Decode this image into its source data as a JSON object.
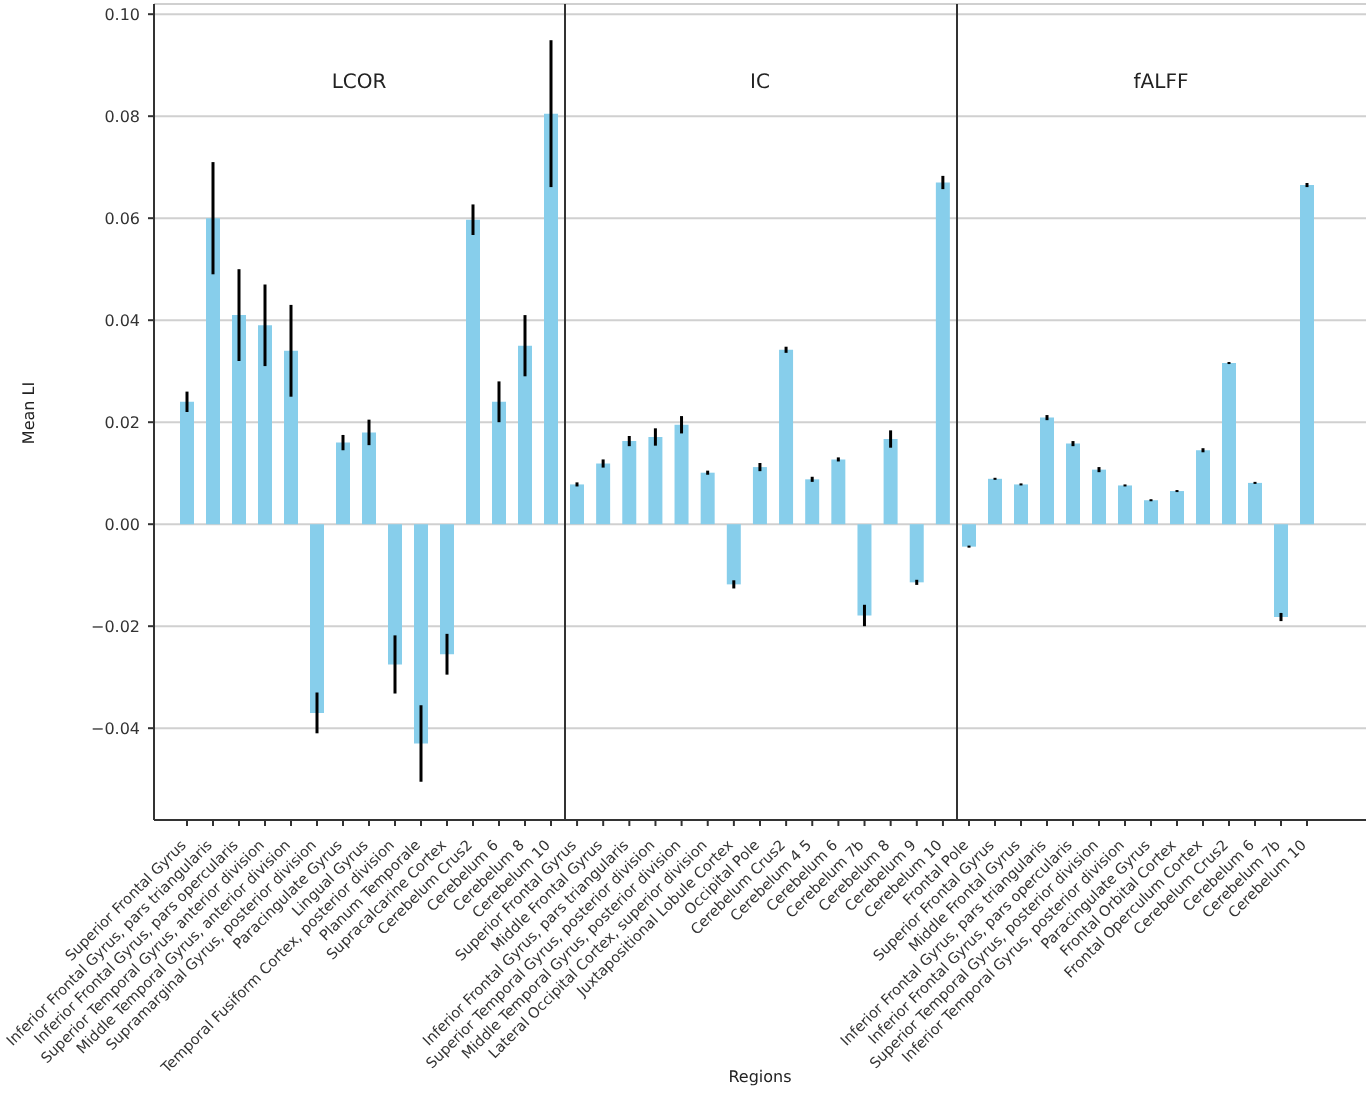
{
  "chart_data": [
    {
      "type": "bar",
      "title": "LCOR",
      "ylabel": "Mean LI",
      "color": "#87ceeb",
      "grid": "y",
      "categories": [
        "Superior Frontal Gyrus",
        "Inferior Frontal Gyrus, pars triangularis",
        "Inferior Frontal Gyrus, pars opercularis",
        "Superior Temporal Gyrus, anterior division",
        "Middle Temporal Gyrus, anterior division",
        "Supramarginal Gyrus, posterior division",
        "Paracingulate Gyrus",
        "Lingual Gyrus",
        "Temporal Fusiform Cortex, posterior division",
        "Planum Temporale",
        "Supracalcarine Cortex",
        "Cerebelum Crus2",
        "Cerebelum 6",
        "Cerebelum 8",
        "Cerebelum 10"
      ],
      "values": [
        0.024,
        0.06,
        0.041,
        0.039,
        0.034,
        -0.037,
        0.016,
        0.018,
        -0.0275,
        -0.043,
        -0.0255,
        0.0597,
        0.024,
        0.035,
        0.0805
      ],
      "errors": [
        0.002,
        0.011,
        0.009,
        0.008,
        0.009,
        0.004,
        0.0015,
        0.0025,
        0.0057,
        0.0075,
        0.004,
        0.003,
        0.004,
        0.006,
        0.0144
      ],
      "ylim": [
        -0.058,
        0.102
      ],
      "yticks": [
        {
          "value": -0.04,
          "label": "−0.04"
        },
        {
          "value": -0.02,
          "label": "−0.02"
        },
        {
          "value": 0,
          "label": "0.00"
        },
        {
          "value": 0.02,
          "label": "0.02"
        },
        {
          "value": 0.04,
          "label": "0.04"
        },
        {
          "value": 0.06,
          "label": "0.06"
        },
        {
          "value": 0.08,
          "label": "0.08"
        },
        {
          "value": 0.1,
          "label": "0.10"
        }
      ]
    },
    {
      "type": "bar",
      "title": "IC",
      "xlabel": "Regions",
      "color": "#87ceeb",
      "grid": "y",
      "tick_labels": "x",
      "categories": [
        "Superior Frontal Gyrus",
        "Middle Frontal Gyrus",
        "Inferior Frontal Gyrus, pars triangularis",
        "Superior Temporal Gyrus, posterior division",
        "Middle Temporal Gyrus, posterior division",
        "Lateral Occipital Cortex, superior division",
        "Juxtapositional Lobule Cortex",
        "Occipital Pole",
        "Cerebelum Crus2",
        "Cerebelum 4 5",
        "Cerebelum 6",
        "Cerebelum 7b",
        "Cerebelum 8",
        "Cerebelum 9",
        "Cerebelum 10"
      ],
      "values": [
        0.0078,
        0.0119,
        0.0163,
        0.0171,
        0.0195,
        0.0101,
        -0.0118,
        0.0112,
        0.0342,
        0.0088,
        0.0127,
        -0.0179,
        0.0167,
        -0.0114,
        0.067
      ],
      "errors": [
        0.0004,
        0.0008,
        0.001,
        0.0017,
        0.0017,
        0.0004,
        0.0008,
        0.0008,
        0.0006,
        0.0005,
        0.0004,
        0.0021,
        0.0017,
        0.0005,
        0.0013
      ],
      "ylim": [
        -0.058,
        0.102
      ],
      "yticks": [
        -0.04,
        -0.02,
        0,
        0.02,
        0.04,
        0.06,
        0.08,
        0.1
      ]
    },
    {
      "type": "bar",
      "title": "fALFF",
      "color": "#87ceeb",
      "grid": "y",
      "tick_labels": "x",
      "categories": [
        "Frontal Pole",
        "Superior Frontal Gyrus",
        "Middle Frontal Gyrus",
        "Inferior Frontal Gyrus, pars triangularis",
        "Inferior Frontal Gyrus, pars opercularis",
        "Superior Temporal Gyrus, posterior division",
        "Inferior Temporal Gyrus, posterior division",
        "Paracingulate Gyrus",
        "Frontal Orbital Cortex",
        "Frontal Operculum Cortex",
        "Cerebelum Crus2",
        "Cerebelum 6",
        "Cerebelum 7b",
        "Cerebelum 10"
      ],
      "values": [
        -0.0044,
        0.0089,
        0.0078,
        0.0209,
        0.0158,
        0.0107,
        0.0076,
        0.0047,
        0.0065,
        0.0145,
        0.0316,
        0.0081,
        -0.0182,
        0.0665
      ],
      "errors": [
        0.0002,
        0.0002,
        0.0002,
        0.0005,
        0.0005,
        0.0005,
        0.0002,
        0.0002,
        0.0002,
        0.0004,
        0.0002,
        0.0002,
        0.0008,
        0.0004
      ],
      "ylim": [
        -0.058,
        0.102
      ],
      "yticks": [
        -0.04,
        -0.02,
        0,
        0.02,
        0.04,
        0.06,
        0.08,
        0.1
      ]
    }
  ]
}
